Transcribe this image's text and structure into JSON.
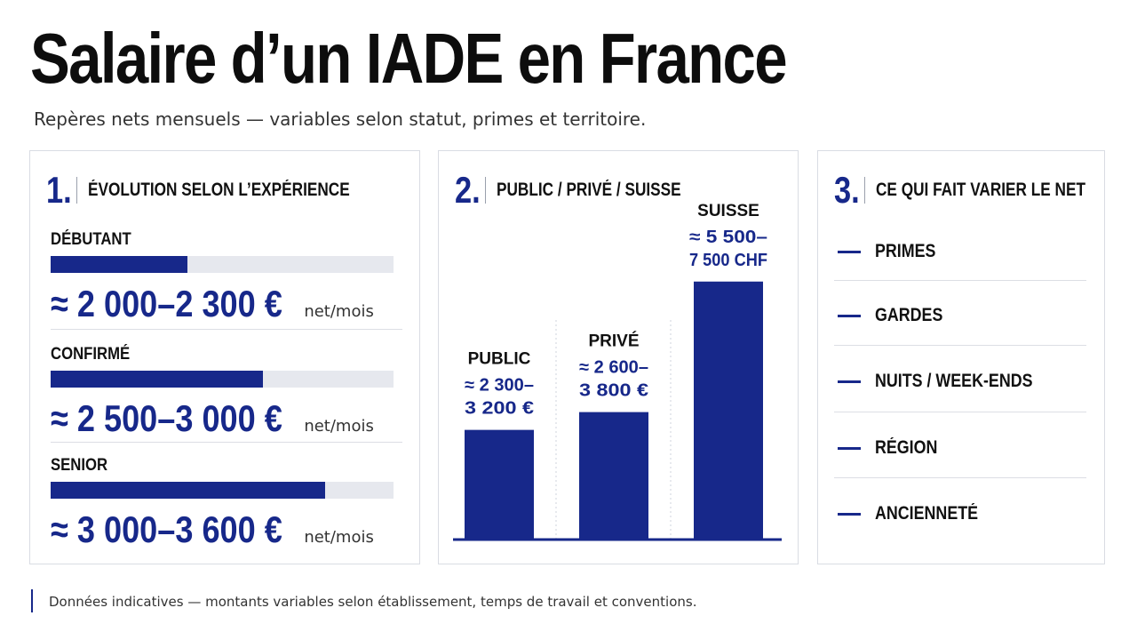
{
  "header": {
    "title": "Salaire d’un IADE en France",
    "subtitle": "Repères nets mensuels — variables selon statut, primes et territoire."
  },
  "panel1": {
    "number": "1.",
    "title": "ÉVOLUTION SELON L’EXPÉRIENCE",
    "levels": [
      {
        "label": "DÉBUTANT",
        "value": "≈ 2 000–2 300 €",
        "unit": "net/mois",
        "progress": 0.4
      },
      {
        "label": "CONFIRMÉ",
        "value": "≈ 2 500–3 000 €",
        "unit": "net/mois",
        "progress": 0.62
      },
      {
        "label": "SENIOR",
        "value": "≈ 3 000–3 600 €",
        "unit": "net/mois",
        "progress": 0.8
      }
    ]
  },
  "panel2": {
    "number": "2.",
    "title": "PUBLIC / PRIVÉ / SUISSE"
  },
  "panel3": {
    "number": "3.",
    "title": "CE QUI FAIT VARIER LE NET",
    "factors": [
      "PRIMES",
      "GARDES",
      "NUITS / WEEK-ENDS",
      "RÉGION",
      "ANCIENNETÉ"
    ]
  },
  "footer": {
    "note": "Données indicatives — montants variables selon établissement, temps de travail et conventions."
  },
  "colors": {
    "accent": "#17288a",
    "track": "#e6e8ee",
    "text": "#111111"
  },
  "chart_data": {
    "type": "bar",
    "categories": [
      "PUBLIC",
      "PRIVÉ",
      "SUISSE"
    ],
    "values": [
      2750,
      3200,
      6500
    ],
    "value_labels": [
      [
        "≈ 2 300–",
        "3 200 €"
      ],
      [
        "≈ 2 600–",
        "3 800 €"
      ],
      [
        "≈ 5 500–",
        "7 500 CHF"
      ]
    ],
    "ylim": [
      0,
      8000
    ],
    "grid": false,
    "legend": "none"
  }
}
